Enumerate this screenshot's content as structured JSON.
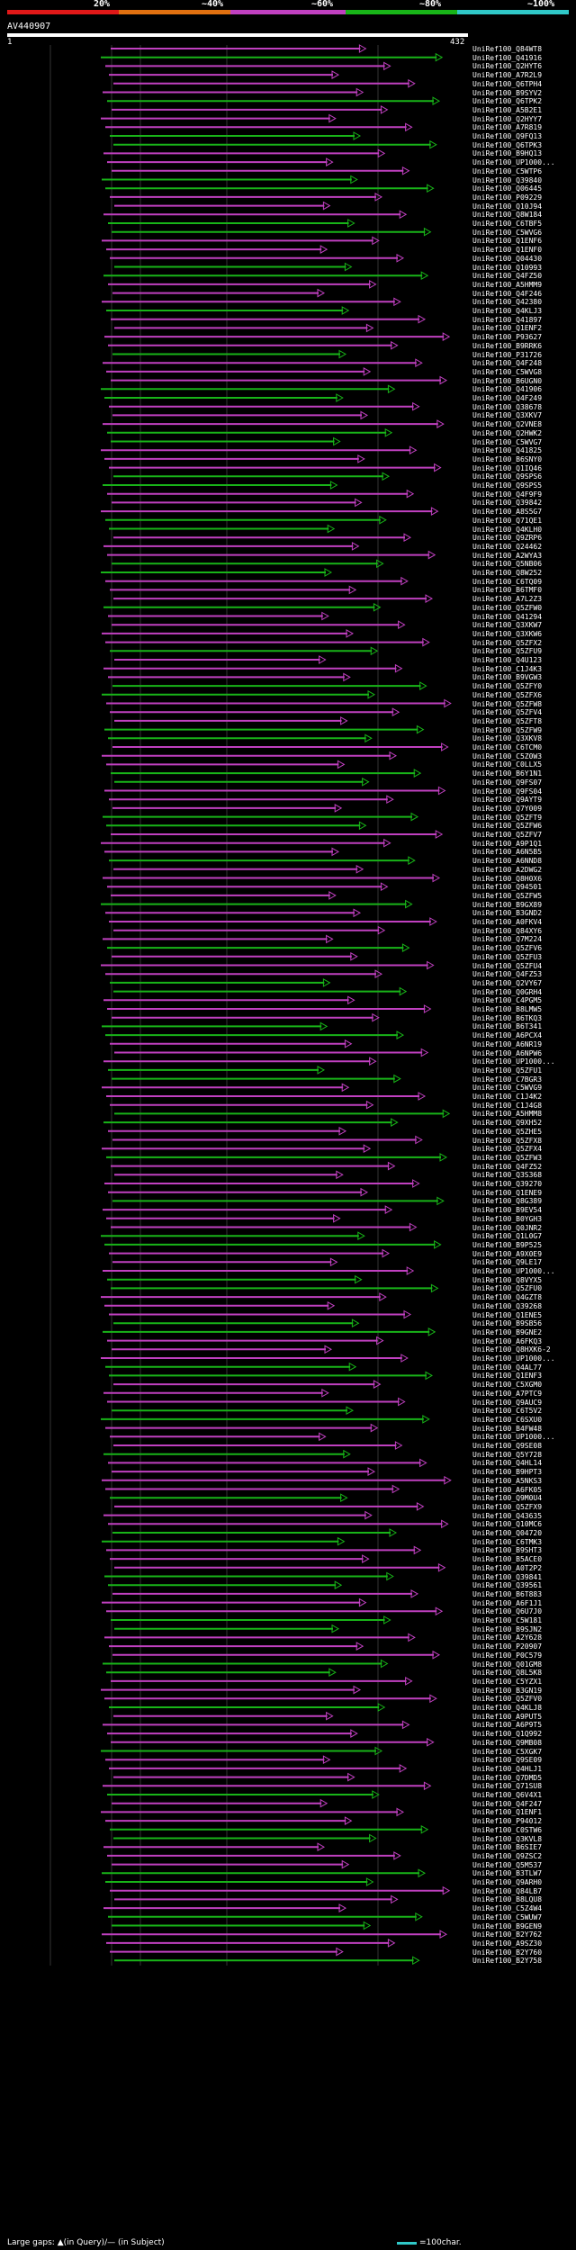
{
  "legend": {
    "labels": [
      "20%",
      "~40%",
      "~60%",
      "~80%",
      "~100%"
    ],
    "colors": [
      "#e01818",
      "#e07010",
      "#c040c0",
      "#18b418",
      "#30c8c8"
    ]
  },
  "query": {
    "id": "AV440907",
    "start": "1",
    "end": "432"
  },
  "hits": [
    "UniRef100_Q84WT8",
    "UniRef100_Q41916",
    "UniRef100_Q2HYT6",
    "UniRef100_A7R2L9",
    "UniRef100_Q6TPH4",
    "UniRef100_B9SYV2",
    "UniRef100_Q6TPK2",
    "UniRef100_A5B2E1",
    "UniRef100_Q2HYY7",
    "UniRef100_A7R819",
    "UniRef100_Q9FQ13",
    "UniRef100_Q6TPK3",
    "UniRef100_B9HQ13",
    "UniRef100_UP1000...",
    "UniRef100_C5WTP6",
    "UniRef100_Q39840",
    "UniRef100_Q06445",
    "UniRef100_P09229",
    "UniRef100_Q10J94",
    "UniRef100_Q8W184",
    "UniRef100_C6TBF5",
    "UniRef100_C5WVG6",
    "UniRef100_Q1ENF6",
    "UniRef100_Q1ENF0",
    "UniRef100_Q04430",
    "UniRef100_Q10993",
    "UniRef100_Q4FZ50",
    "UniRef100_A5HMM9",
    "UniRef100_Q4F246",
    "UniRef100_Q42380",
    "UniRef100_Q4KLJ3",
    "UniRef100_Q41897",
    "UniRef100_Q1ENF2",
    "UniRef100_P93627",
    "UniRef100_B9RRK6",
    "UniRef100_P31726",
    "UniRef100_Q4F248",
    "UniRef100_C5WVG8",
    "UniRef100_B6UGN0",
    "UniRef100_Q41906",
    "UniRef100_Q4F249",
    "UniRef100_Q38678",
    "UniRef100_Q3XKV7",
    "UniRef100_Q2VNE8",
    "UniRef100_Q2HWK2",
    "UniRef100_C5WVG7",
    "UniRef100_Q41825",
    "UniRef100_B6SNY0",
    "UniRef100_Q1IQ46",
    "UniRef100_Q9SPS6",
    "UniRef100_Q9SPS5",
    "UniRef100_Q4F9F9",
    "UniRef100_Q39842",
    "UniRef100_A8S5G7",
    "UniRef100_Q71QE1",
    "UniRef100_Q4KLH0",
    "UniRef100_Q9ZRP6",
    "UniRef100_Q24462",
    "UniRef100_A2WYA3",
    "UniRef100_Q5NB06",
    "UniRef100_Q8W252",
    "UniRef100_C6TQ09",
    "UniRef100_B6TMF0",
    "UniRef100_A7L2Z3",
    "UniRef100_Q5ZFW0",
    "UniRef100_Q41294",
    "UniRef100_Q3XKW7",
    "UniRef100_Q3XKW6",
    "UniRef100_Q5ZFX2",
    "UniRef100_Q5ZFU9",
    "UniRef100_Q4U123",
    "UniRef100_C1J4K3",
    "UniRef100_B9VGW3",
    "UniRef100_Q5ZFY0",
    "UniRef100_Q5ZFX6",
    "UniRef100_Q5ZFW8",
    "UniRef100_Q5ZFV4",
    "UniRef100_Q5ZFT8",
    "UniRef100_Q5ZFW9",
    "UniRef100_Q3XKV8",
    "UniRef100_C6TCM0",
    "UniRef100_C5Z0W3",
    "UniRef100_C0LLX5",
    "UniRef100_B6Y1N1",
    "UniRef100_Q9FS07",
    "UniRef100_Q9FS04",
    "UniRef100_Q9AYT9",
    "UniRef100_Q7Y009",
    "UniRef100_Q5ZFT9",
    "UniRef100_Q5ZFW6",
    "UniRef100_Q5ZFV7",
    "UniRef100_A9P1Q1",
    "UniRef100_A6N5B5",
    "UniRef100_A6NND8",
    "UniRef100_A2DWG2",
    "UniRef100_Q8H0X6",
    "UniRef100_Q94501",
    "UniRef100_Q5ZFW5",
    "UniRef100_B9GX89",
    "UniRef100_B3GND2",
    "UniRef100_A0FKV4",
    "UniRef100_Q84XY6",
    "UniRef100_Q7M224",
    "UniRef100_Q5ZFV6",
    "UniRef100_Q5ZFU3",
    "UniRef100_Q5ZFU4",
    "UniRef100_Q4FZ53",
    "UniRef100_Q2VY67",
    "UniRef100_Q0GRH4",
    "UniRef100_C4PGM5",
    "UniRef100_B8LMW5",
    "UniRef100_B6TKQ3",
    "UniRef100_B6T341",
    "UniRef100_A6PCX4",
    "UniRef100_A6NR19",
    "UniRef100_A6NPW6",
    "UniRef100_UP1000...",
    "UniRef100_Q5ZFU1",
    "UniRef100_C7BGR3",
    "UniRef100_C5WVG9",
    "UniRef100_C1J4K2",
    "UniRef100_C1J4G8",
    "UniRef100_A5HMM8",
    "UniRef100_Q9XH52",
    "UniRef100_Q5ZHE5",
    "UniRef100_Q5ZFX8",
    "UniRef100_Q5ZFX4",
    "UniRef100_Q5ZFW3",
    "UniRef100_Q4FZ52",
    "UniRef100_Q3S368",
    "UniRef100_Q39270",
    "UniRef100_Q1ENE9",
    "UniRef100_Q8G389",
    "UniRef100_B9EV54",
    "UniRef100_B0YGH3",
    "UniRef100_Q0JNR2",
    "UniRef100_Q1L0G7",
    "UniRef100_B9P525",
    "UniRef100_A9X0E9",
    "UniRef100_Q9LE17",
    "UniRef100_UP1000...",
    "UniRef100_Q8VYX5",
    "UniRef100_Q5ZFU0",
    "UniRef100_Q4GZT8",
    "UniRef100_Q39268",
    "UniRef100_Q1ENE5",
    "UniRef100_B9SB56",
    "UniRef100_B9GNE2",
    "UniRef100_A6FKQ3",
    "UniRef100_Q8HXK6-2",
    "UniRef100_UP1000...",
    "UniRef100_Q4AL77",
    "UniRef100_Q1ENF3",
    "UniRef100_C5XGM0",
    "UniRef100_A7PTC9",
    "UniRef100_Q9AUC9",
    "UniRef100_C6T5V2",
    "UniRef100_C6SXU0",
    "UniRef100_B4FW48",
    "UniRef100_UP1000...",
    "UniRef100_Q9SE08",
    "UniRef100_Q5Y728",
    "UniRef100_Q4HL14",
    "UniRef100_B9HPT3",
    "UniRef100_A5NKS3",
    "UniRef100_A6FK05",
    "UniRef100_Q9M0U4",
    "UniRef100_Q5ZFX9",
    "UniRef100_Q43635",
    "UniRef100_Q10MC6",
    "UniRef100_Q04720",
    "UniRef100_C6TMK3",
    "UniRef100_B9SHT3",
    "UniRef100_B5ACE0",
    "UniRef100_A0T2P2",
    "UniRef100_Q39841",
    "UniRef100_Q39561",
    "UniRef100_B6T883",
    "UniRef100_A6F1J1",
    "UniRef100_Q6U7J0",
    "UniRef100_C5W181",
    "UniRef100_B9SJN2",
    "UniRef100_A2Y628",
    "UniRef100_P20907",
    "UniRef100_P0C579",
    "UniRef100_Q01GM8",
    "UniRef100_Q8L5K8",
    "UniRef100_C5YZX1",
    "UniRef100_B3GN19",
    "UniRef100_Q5ZFV0",
    "UniRef100_Q4KLJ8",
    "UniRef100_A9PUT5",
    "UniRef100_A6P9T5",
    "UniRef100_Q1Q992",
    "UniRef100_Q9MB08",
    "UniRef100_C5XGK7",
    "UniRef100_Q9SE09",
    "UniRef100_Q4HLJ1",
    "UniRef100_Q7DMD5",
    "UniRef100_Q71SU8",
    "UniRef100_Q6V4X1",
    "UniRef100_Q4F247",
    "UniRef100_Q1ENF1",
    "UniRef100_P94012",
    "UniRef100_C0STW6",
    "UniRef100_Q3KVL8",
    "UniRef100_B6SIE7",
    "UniRef100_Q9ZSC2",
    "UniRef100_Q5M537",
    "UniRef100_B3TLW7",
    "UniRef100_Q9ARH0",
    "UniRef100_Q84LB7",
    "UniRef100_B8LQU8",
    "UniRef100_C5Z4W4",
    "UniRef100_C5WUW7",
    "UniRef100_B9GEN9",
    "UniRef100_B2Y762",
    "UniRef100_A9SZ30",
    "UniRef100_B2Y760",
    "UniRef100_B2Y758"
  ],
  "footer": {
    "left": "Large gaps: ▲(in Query)/— (in Subject)",
    "right": "=100char."
  }
}
